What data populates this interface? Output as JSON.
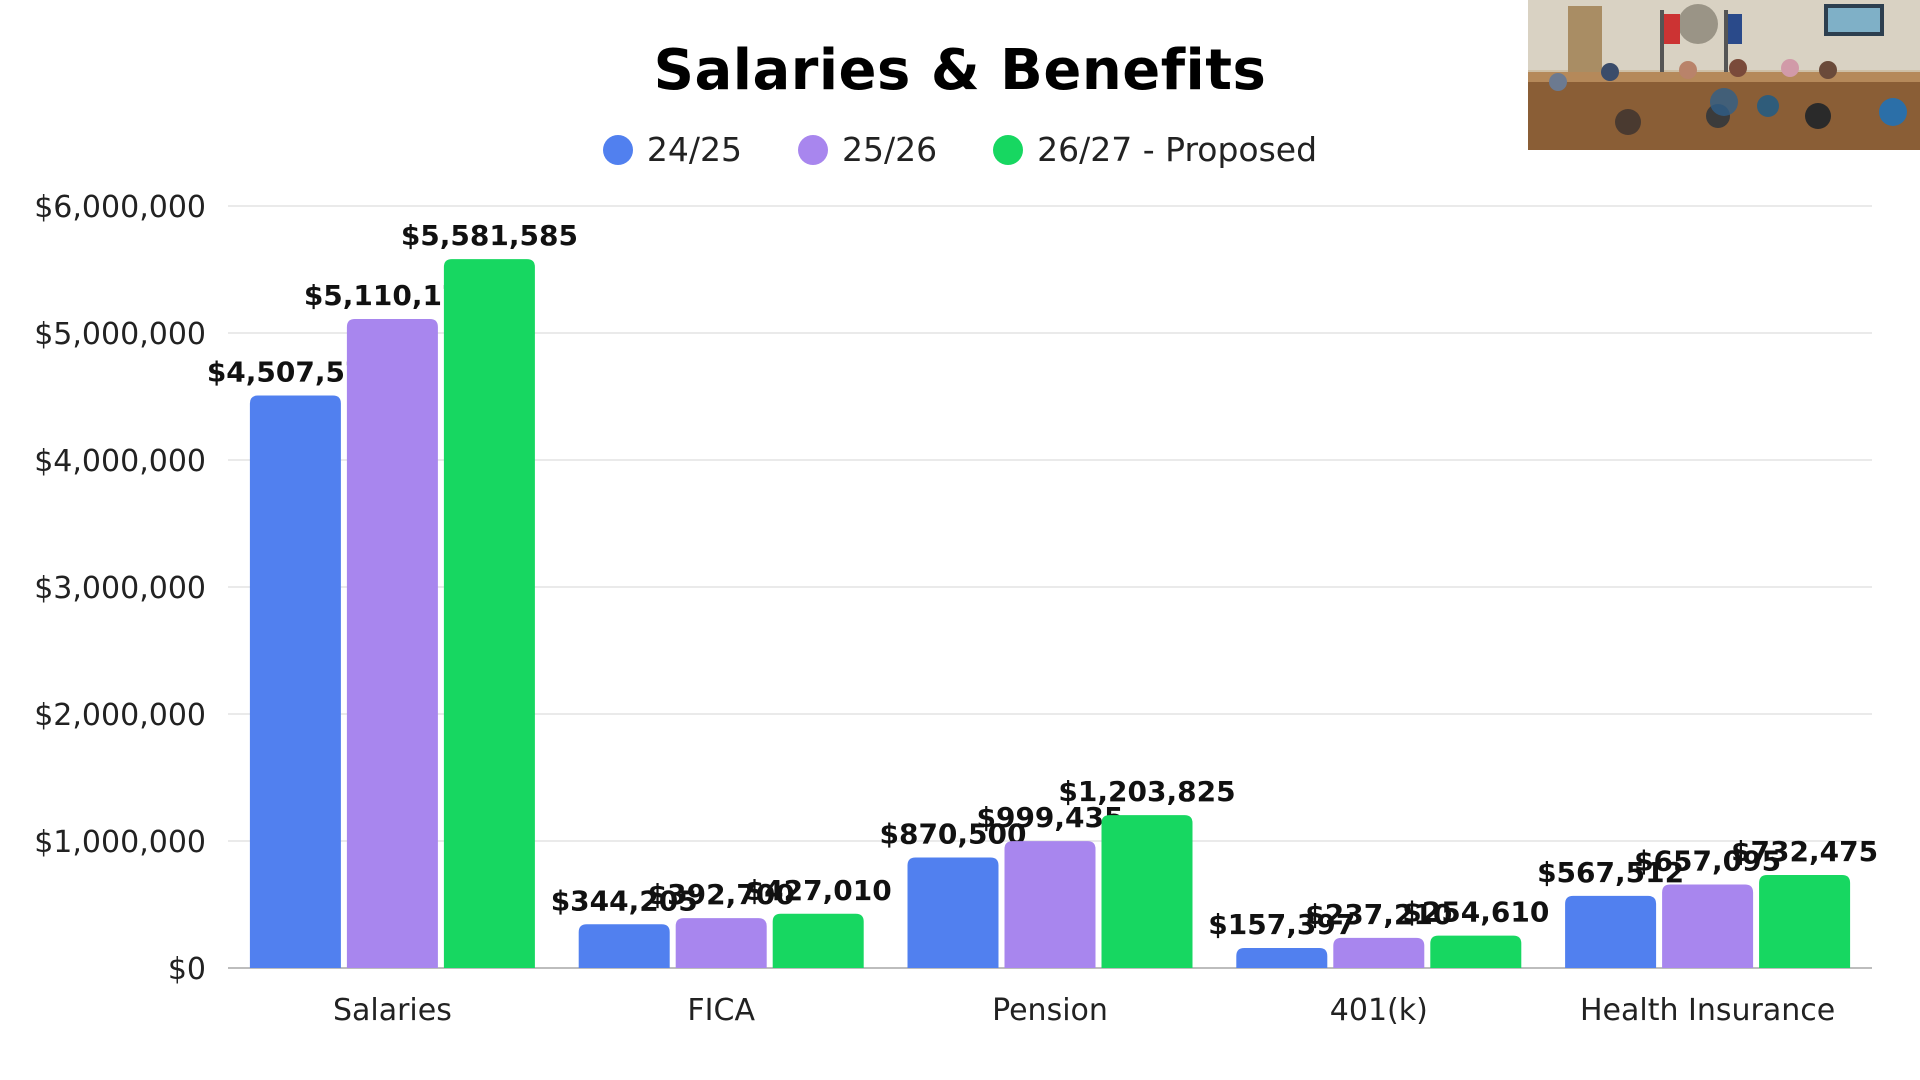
{
  "chart_data": {
    "type": "bar",
    "title": "Salaries & Benefits",
    "categories": [
      "Salaries",
      "FICA",
      "Pension",
      "401(k)",
      "Health Insurance"
    ],
    "series": [
      {
        "name": "24/25",
        "color": "#5180ef",
        "values": [
          4507578,
          344205,
          870500,
          157397,
          567512
        ],
        "labels": [
          "$4,507,578",
          "$344,205",
          "$870,500",
          "$157,397",
          "$567,512"
        ]
      },
      {
        "name": "25/26",
        "color": "#a886ee",
        "values": [
          5110175,
          392700,
          999435,
          237210,
          657095
        ],
        "labels": [
          "$5,110,175",
          "$392,700",
          "$999,435",
          "$237,210",
          "$657,095"
        ]
      },
      {
        "name": "26/27 - Proposed",
        "color": "#17d761",
        "values": [
          5581585,
          427010,
          1203825,
          254610,
          732475
        ],
        "labels": [
          "$5,581,585",
          "$427,010",
          "$1,203,825",
          "$254,610",
          "$732,475"
        ]
      }
    ],
    "ylim": [
      0,
      6000000
    ],
    "yticks": [
      0,
      1000000,
      2000000,
      3000000,
      4000000,
      5000000,
      6000000
    ],
    "ytick_labels": [
      "$0",
      "$1,000,000",
      "$2,000,000",
      "$3,000,000",
      "$4,000,000",
      "$5,000,000",
      "$6,000,000"
    ],
    "grid": true,
    "legend_position": "top-center"
  },
  "video_inset": {
    "description_icon": "meeting-room-video-icon"
  }
}
